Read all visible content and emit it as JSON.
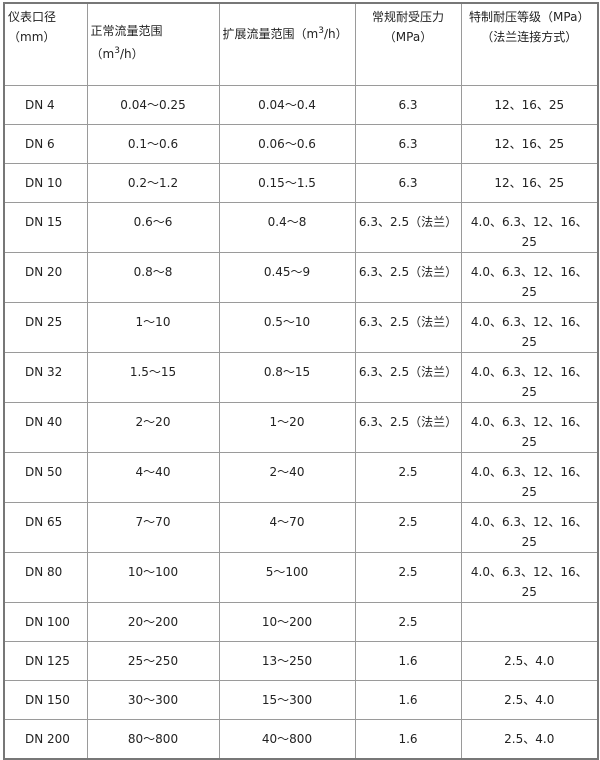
{
  "headers": {
    "diameter": "仪表口径（mm）",
    "normal_flow_prefix": "正常流量范围（m",
    "expanded_flow_prefix": "扩展流量范围（m",
    "flow_sup": "3",
    "flow_suffix": "/h）",
    "normal_pressure": "常规耐受压力（MPa）",
    "special_pressure": "特制耐压等级（MPa）（法兰连接方式）"
  },
  "rows": [
    {
      "dn": "DN 4",
      "normal": "0.04～0.25",
      "expanded": "0.04～0.4",
      "pressure": "6.3",
      "special": "12、16、25"
    },
    {
      "dn": "DN 6",
      "normal": "0.1～0.6",
      "expanded": "0.06～0.6",
      "pressure": "6.3",
      "special": "12、16、25"
    },
    {
      "dn": "DN 10",
      "normal": "0.2～1.2",
      "expanded": "0.15～1.5",
      "pressure": "6.3",
      "special": "12、16、25"
    },
    {
      "dn": "DN 15",
      "normal": "0.6～6",
      "expanded": "0.4～8",
      "pressure": "6.3、2.5（法兰）",
      "special": "4.0、6.3、12、16、25"
    },
    {
      "dn": "DN 20",
      "normal": "0.8～8",
      "expanded": "0.45～9",
      "pressure": "6.3、2.5（法兰）",
      "special": "4.0、6.3、12、16、25"
    },
    {
      "dn": "DN 25",
      "normal": "1～10",
      "expanded": "0.5～10",
      "pressure": "6.3、2.5（法兰）",
      "special": "4.0、6.3、12、16、25"
    },
    {
      "dn": "DN 32",
      "normal": "1.5～15",
      "expanded": "0.8～15",
      "pressure": "6.3、2.5（法兰）",
      "special": "4.0、6.3、12、16、25"
    },
    {
      "dn": "DN 40",
      "normal": "2～20",
      "expanded": "1～20",
      "pressure": "6.3、2.5（法兰）",
      "special": "4.0、6.3、12、16、25"
    },
    {
      "dn": "DN 50",
      "normal": "4～40",
      "expanded": "2～40",
      "pressure": "2.5",
      "special": "4.0、6.3、12、16、25"
    },
    {
      "dn": "DN 65",
      "normal": "7～70",
      "expanded": "4～70",
      "pressure": "2.5",
      "special": "4.0、6.3、12、16、25"
    },
    {
      "dn": "DN 80",
      "normal": "10～100",
      "expanded": "5～100",
      "pressure": "2.5",
      "special": "4.0、6.3、12、16、25"
    },
    {
      "dn": "DN 100",
      "normal": "20～200",
      "expanded": "10～200",
      "pressure": "2.5",
      "special": ""
    },
    {
      "dn": "DN 125",
      "normal": "25～250",
      "expanded": "13～250",
      "pressure": "1.6",
      "special": "2.5、4.0"
    },
    {
      "dn": "DN 150",
      "normal": "30～300",
      "expanded": "15～300",
      "pressure": "1.6",
      "special": "2.5、4.0"
    },
    {
      "dn": "DN 200",
      "normal": "80～800",
      "expanded": "40～800",
      "pressure": "1.6",
      "special": "2.5、4.0"
    }
  ]
}
